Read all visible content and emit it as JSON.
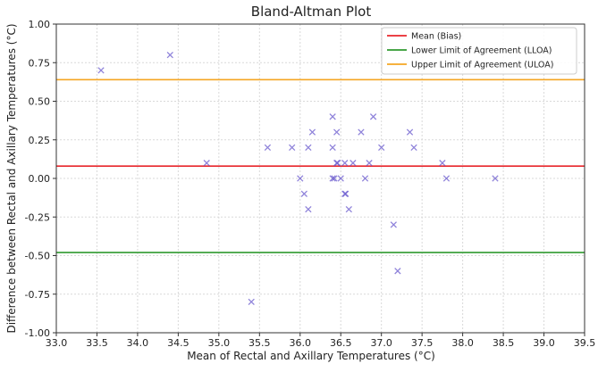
{
  "chart_data": {
    "type": "scatter",
    "title": "Bland-Altman Plot",
    "xlabel": "Mean of Rectal and Axillary Temperatures (°C)",
    "ylabel": "Difference between Rectal and Axillary Temperatures (°C)",
    "xlim": [
      33.0,
      39.5
    ],
    "ylim": [
      -1.0,
      1.0
    ],
    "grid": true,
    "legend_position": "top-right",
    "x_ticks": [
      "33.0",
      "33.5",
      "34.0",
      "34.5",
      "35.0",
      "35.5",
      "36.0",
      "36.5",
      "37.0",
      "37.5",
      "38.0",
      "38.5",
      "39.0",
      "39.5"
    ],
    "y_ticks": [
      "1.00",
      "0.75",
      "0.50",
      "0.25",
      "0.00",
      "-0.25",
      "-0.50",
      "-0.75",
      "-1.00"
    ],
    "marker_color": "#6a5acd",
    "points": [
      {
        "x": 33.55,
        "y": 0.7
      },
      {
        "x": 34.4,
        "y": 0.8
      },
      {
        "x": 34.85,
        "y": 0.1
      },
      {
        "x": 35.4,
        "y": -0.8
      },
      {
        "x": 35.6,
        "y": 0.2
      },
      {
        "x": 35.9,
        "y": 0.2
      },
      {
        "x": 36.0,
        "y": 0.0
      },
      {
        "x": 36.05,
        "y": -0.1
      },
      {
        "x": 36.1,
        "y": 0.2
      },
      {
        "x": 36.1,
        "y": -0.2
      },
      {
        "x": 36.15,
        "y": 0.3
      },
      {
        "x": 36.4,
        "y": 0.4
      },
      {
        "x": 36.4,
        "y": 0.2
      },
      {
        "x": 36.4,
        "y": 0.0
      },
      {
        "x": 36.42,
        "y": 0.0
      },
      {
        "x": 36.45,
        "y": 0.3
      },
      {
        "x": 36.45,
        "y": 0.1
      },
      {
        "x": 36.46,
        "y": 0.1
      },
      {
        "x": 36.5,
        "y": 0.0
      },
      {
        "x": 36.55,
        "y": 0.1
      },
      {
        "x": 36.55,
        "y": -0.1
      },
      {
        "x": 36.56,
        "y": -0.1
      },
      {
        "x": 36.6,
        "y": -0.2
      },
      {
        "x": 36.65,
        "y": 0.1
      },
      {
        "x": 36.75,
        "y": 0.3
      },
      {
        "x": 36.8,
        "y": 0.0
      },
      {
        "x": 36.85,
        "y": 0.1
      },
      {
        "x": 36.9,
        "y": 0.4
      },
      {
        "x": 37.0,
        "y": 0.2
      },
      {
        "x": 37.15,
        "y": -0.3
      },
      {
        "x": 37.2,
        "y": -0.6
      },
      {
        "x": 37.35,
        "y": 0.3
      },
      {
        "x": 37.4,
        "y": 0.2
      },
      {
        "x": 37.75,
        "y": 0.1
      },
      {
        "x": 37.8,
        "y": 0.0
      },
      {
        "x": 38.4,
        "y": 0.0
      }
    ],
    "reference_lines": [
      {
        "name": "Mean (Bias)",
        "y": 0.08,
        "color": "#e8262b"
      },
      {
        "name": "Lower Limit of Agreement (LLOA)",
        "y": -0.48,
        "color": "#2f9a2f"
      },
      {
        "name": "Upper Limit of Agreement (ULOA)",
        "y": 0.64,
        "color": "#f5a623"
      }
    ]
  }
}
